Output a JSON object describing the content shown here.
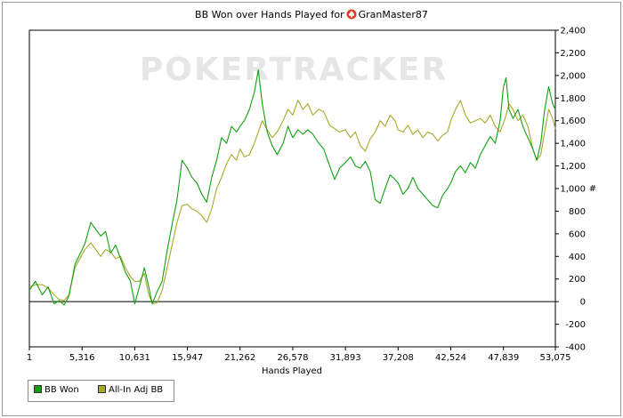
{
  "title_prefix": "BB Won over Hands Played for",
  "player_name": "GranMaster87",
  "watermark": "POKERTRACKER",
  "legend": {
    "bb_won": "BB Won",
    "allin_adj": "All-In Adj BB"
  },
  "chart_data": {
    "type": "line",
    "title": "BB Won over Hands Played for GranMaster87",
    "xlabel": "Hands Played",
    "ylabel": "#",
    "xlim": [
      1,
      53075
    ],
    "ylim": [
      -400,
      2400
    ],
    "x_ticks": [
      "1",
      "5,316",
      "10,631",
      "15,947",
      "21,262",
      "26,578",
      "31,893",
      "37,208",
      "42,524",
      "47,839",
      "53,075"
    ],
    "y_ticks": [
      "-400",
      "-200",
      "0",
      "200",
      "400",
      "600",
      "800",
      "1,000",
      "1,200",
      "1,400",
      "1,600",
      "1,800",
      "2,000",
      "2,200",
      "2,400"
    ],
    "grid": false,
    "legend_position": "bottom-left",
    "colors": {
      "bb_won": "#11a011",
      "allin_adj": "#a8a82a",
      "zero_line": "#000000",
      "watermark": "#e6e6e6"
    },
    "series": [
      {
        "name": "BB Won",
        "color": "#11a011",
        "points": [
          [
            1,
            100
          ],
          [
            600,
            180
          ],
          [
            1300,
            60
          ],
          [
            1900,
            130
          ],
          [
            2500,
            -20
          ],
          [
            3000,
            10
          ],
          [
            3500,
            -30
          ],
          [
            4000,
            50
          ],
          [
            4600,
            330
          ],
          [
            5100,
            420
          ],
          [
            5600,
            510
          ],
          [
            6200,
            700
          ],
          [
            6700,
            640
          ],
          [
            7200,
            580
          ],
          [
            7700,
            620
          ],
          [
            8200,
            430
          ],
          [
            8700,
            500
          ],
          [
            9200,
            380
          ],
          [
            9700,
            260
          ],
          [
            10200,
            180
          ],
          [
            10631,
            -20
          ],
          [
            11100,
            130
          ],
          [
            11600,
            300
          ],
          [
            12000,
            150
          ],
          [
            12400,
            -20
          ],
          [
            12900,
            90
          ],
          [
            13400,
            180
          ],
          [
            13900,
            450
          ],
          [
            14400,
            680
          ],
          [
            14900,
            900
          ],
          [
            15400,
            1250
          ],
          [
            15947,
            1180
          ],
          [
            16400,
            1100
          ],
          [
            16900,
            1050
          ],
          [
            17400,
            950
          ],
          [
            17900,
            880
          ],
          [
            18400,
            1100
          ],
          [
            18900,
            1250
          ],
          [
            19400,
            1450
          ],
          [
            19900,
            1400
          ],
          [
            20400,
            1550
          ],
          [
            20900,
            1500
          ],
          [
            21262,
            1550
          ],
          [
            21700,
            1600
          ],
          [
            22200,
            1700
          ],
          [
            22700,
            1850
          ],
          [
            23100,
            2050
          ],
          [
            23500,
            1750
          ],
          [
            24000,
            1500
          ],
          [
            24500,
            1380
          ],
          [
            25000,
            1300
          ],
          [
            25600,
            1400
          ],
          [
            26100,
            1550
          ],
          [
            26578,
            1450
          ],
          [
            27100,
            1520
          ],
          [
            27600,
            1480
          ],
          [
            28100,
            1520
          ],
          [
            28600,
            1480
          ],
          [
            29200,
            1400
          ],
          [
            29700,
            1350
          ],
          [
            30300,
            1200
          ],
          [
            30800,
            1080
          ],
          [
            31300,
            1180
          ],
          [
            31893,
            1230
          ],
          [
            32400,
            1280
          ],
          [
            32900,
            1200
          ],
          [
            33400,
            1180
          ],
          [
            33900,
            1240
          ],
          [
            34400,
            1150
          ],
          [
            34900,
            900
          ],
          [
            35400,
            870
          ],
          [
            35900,
            1000
          ],
          [
            36400,
            1120
          ],
          [
            36900,
            1080
          ],
          [
            37208,
            1050
          ],
          [
            37700,
            950
          ],
          [
            38200,
            1000
          ],
          [
            38700,
            1100
          ],
          [
            39200,
            1000
          ],
          [
            39700,
            950
          ],
          [
            40200,
            900
          ],
          [
            40700,
            850
          ],
          [
            41200,
            830
          ],
          [
            41700,
            940
          ],
          [
            42200,
            1000
          ],
          [
            42524,
            1050
          ],
          [
            43000,
            1150
          ],
          [
            43500,
            1200
          ],
          [
            44000,
            1140
          ],
          [
            44500,
            1230
          ],
          [
            45000,
            1180
          ],
          [
            45500,
            1300
          ],
          [
            46000,
            1380
          ],
          [
            46500,
            1460
          ],
          [
            47000,
            1400
          ],
          [
            47500,
            1600
          ],
          [
            47839,
            1900
          ],
          [
            48100,
            1980
          ],
          [
            48400,
            1700
          ],
          [
            48800,
            1620
          ],
          [
            49300,
            1700
          ],
          [
            49800,
            1550
          ],
          [
            50300,
            1450
          ],
          [
            50800,
            1350
          ],
          [
            51200,
            1250
          ],
          [
            51600,
            1400
          ],
          [
            52000,
            1700
          ],
          [
            52400,
            1900
          ],
          [
            52800,
            1750
          ],
          [
            53075,
            1700
          ]
        ]
      },
      {
        "name": "All-In Adj BB",
        "color": "#a8a82a",
        "points": [
          [
            1,
            130
          ],
          [
            600,
            150
          ],
          [
            1300,
            150
          ],
          [
            1900,
            120
          ],
          [
            2500,
            60
          ],
          [
            3000,
            20
          ],
          [
            3500,
            10
          ],
          [
            4000,
            60
          ],
          [
            4600,
            300
          ],
          [
            5100,
            380
          ],
          [
            5600,
            460
          ],
          [
            6200,
            520
          ],
          [
            6700,
            460
          ],
          [
            7200,
            400
          ],
          [
            7700,
            460
          ],
          [
            8200,
            440
          ],
          [
            8700,
            380
          ],
          [
            9200,
            400
          ],
          [
            9700,
            300
          ],
          [
            10200,
            220
          ],
          [
            10631,
            180
          ],
          [
            11100,
            180
          ],
          [
            11600,
            250
          ],
          [
            12000,
            80
          ],
          [
            12400,
            -20
          ],
          [
            12900,
            -10
          ],
          [
            13400,
            100
          ],
          [
            13900,
            300
          ],
          [
            14400,
            500
          ],
          [
            14900,
            700
          ],
          [
            15400,
            850
          ],
          [
            15947,
            860
          ],
          [
            16400,
            820
          ],
          [
            16900,
            800
          ],
          [
            17400,
            760
          ],
          [
            17900,
            700
          ],
          [
            18400,
            820
          ],
          [
            18900,
            1000
          ],
          [
            19400,
            1100
          ],
          [
            19900,
            1220
          ],
          [
            20400,
            1300
          ],
          [
            20900,
            1250
          ],
          [
            21262,
            1350
          ],
          [
            21700,
            1280
          ],
          [
            22200,
            1300
          ],
          [
            22700,
            1400
          ],
          [
            23100,
            1500
          ],
          [
            23500,
            1600
          ],
          [
            24000,
            1520
          ],
          [
            24500,
            1450
          ],
          [
            25000,
            1500
          ],
          [
            25600,
            1600
          ],
          [
            26100,
            1700
          ],
          [
            26578,
            1650
          ],
          [
            27100,
            1780
          ],
          [
            27600,
            1700
          ],
          [
            28100,
            1750
          ],
          [
            28600,
            1650
          ],
          [
            29200,
            1700
          ],
          [
            29700,
            1680
          ],
          [
            30300,
            1560
          ],
          [
            30800,
            1530
          ],
          [
            31300,
            1500
          ],
          [
            31893,
            1520
          ],
          [
            32400,
            1450
          ],
          [
            32900,
            1500
          ],
          [
            33400,
            1380
          ],
          [
            33900,
            1330
          ],
          [
            34400,
            1440
          ],
          [
            34900,
            1500
          ],
          [
            35400,
            1600
          ],
          [
            35900,
            1550
          ],
          [
            36400,
            1650
          ],
          [
            36900,
            1600
          ],
          [
            37208,
            1520
          ],
          [
            37700,
            1500
          ],
          [
            38200,
            1560
          ],
          [
            38700,
            1480
          ],
          [
            39200,
            1520
          ],
          [
            39700,
            1450
          ],
          [
            40200,
            1500
          ],
          [
            40700,
            1480
          ],
          [
            41200,
            1420
          ],
          [
            41700,
            1470
          ],
          [
            42200,
            1500
          ],
          [
            42524,
            1600
          ],
          [
            43000,
            1700
          ],
          [
            43500,
            1780
          ],
          [
            44000,
            1650
          ],
          [
            44500,
            1580
          ],
          [
            45000,
            1600
          ],
          [
            45500,
            1620
          ],
          [
            46000,
            1580
          ],
          [
            46500,
            1650
          ],
          [
            47000,
            1550
          ],
          [
            47500,
            1500
          ],
          [
            47839,
            1580
          ],
          [
            48100,
            1650
          ],
          [
            48400,
            1750
          ],
          [
            48800,
            1700
          ],
          [
            49300,
            1600
          ],
          [
            49800,
            1650
          ],
          [
            50300,
            1550
          ],
          [
            50800,
            1350
          ],
          [
            51200,
            1250
          ],
          [
            51600,
            1300
          ],
          [
            52000,
            1500
          ],
          [
            52400,
            1700
          ],
          [
            52800,
            1620
          ],
          [
            53075,
            1530
          ]
        ]
      }
    ]
  }
}
